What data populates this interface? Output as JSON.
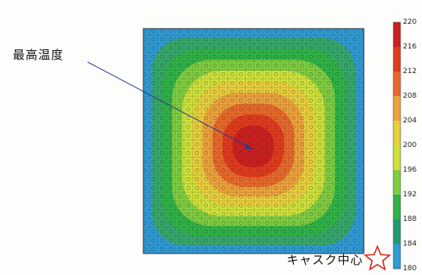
{
  "callout": {
    "label": "最高温度"
  },
  "legend": {
    "ticks": [
      "220",
      "216",
      "212",
      "208",
      "204",
      "200",
      "196",
      "192",
      "188",
      "184",
      "180"
    ],
    "colors": [
      "#cc1f1f",
      "#e23a1c",
      "#e9692a",
      "#eda23a",
      "#e8cf3c",
      "#cfe23a",
      "#7fce40",
      "#2fb347",
      "#1f9c6e",
      "#2e9cd6",
      "#1c4fd0"
    ]
  },
  "center_marker": {
    "label": "キャスク中心",
    "icon": "star-outline-icon",
    "color": "#e0231e"
  },
  "contour": {
    "band_colors": [
      "#2f9ad4",
      "#36a86a",
      "#2fb347",
      "#7fce40",
      "#cfe23a",
      "#e8cf3c",
      "#eda23a",
      "#e9692a",
      "#e23a1c",
      "#cc1f1f"
    ]
  }
}
